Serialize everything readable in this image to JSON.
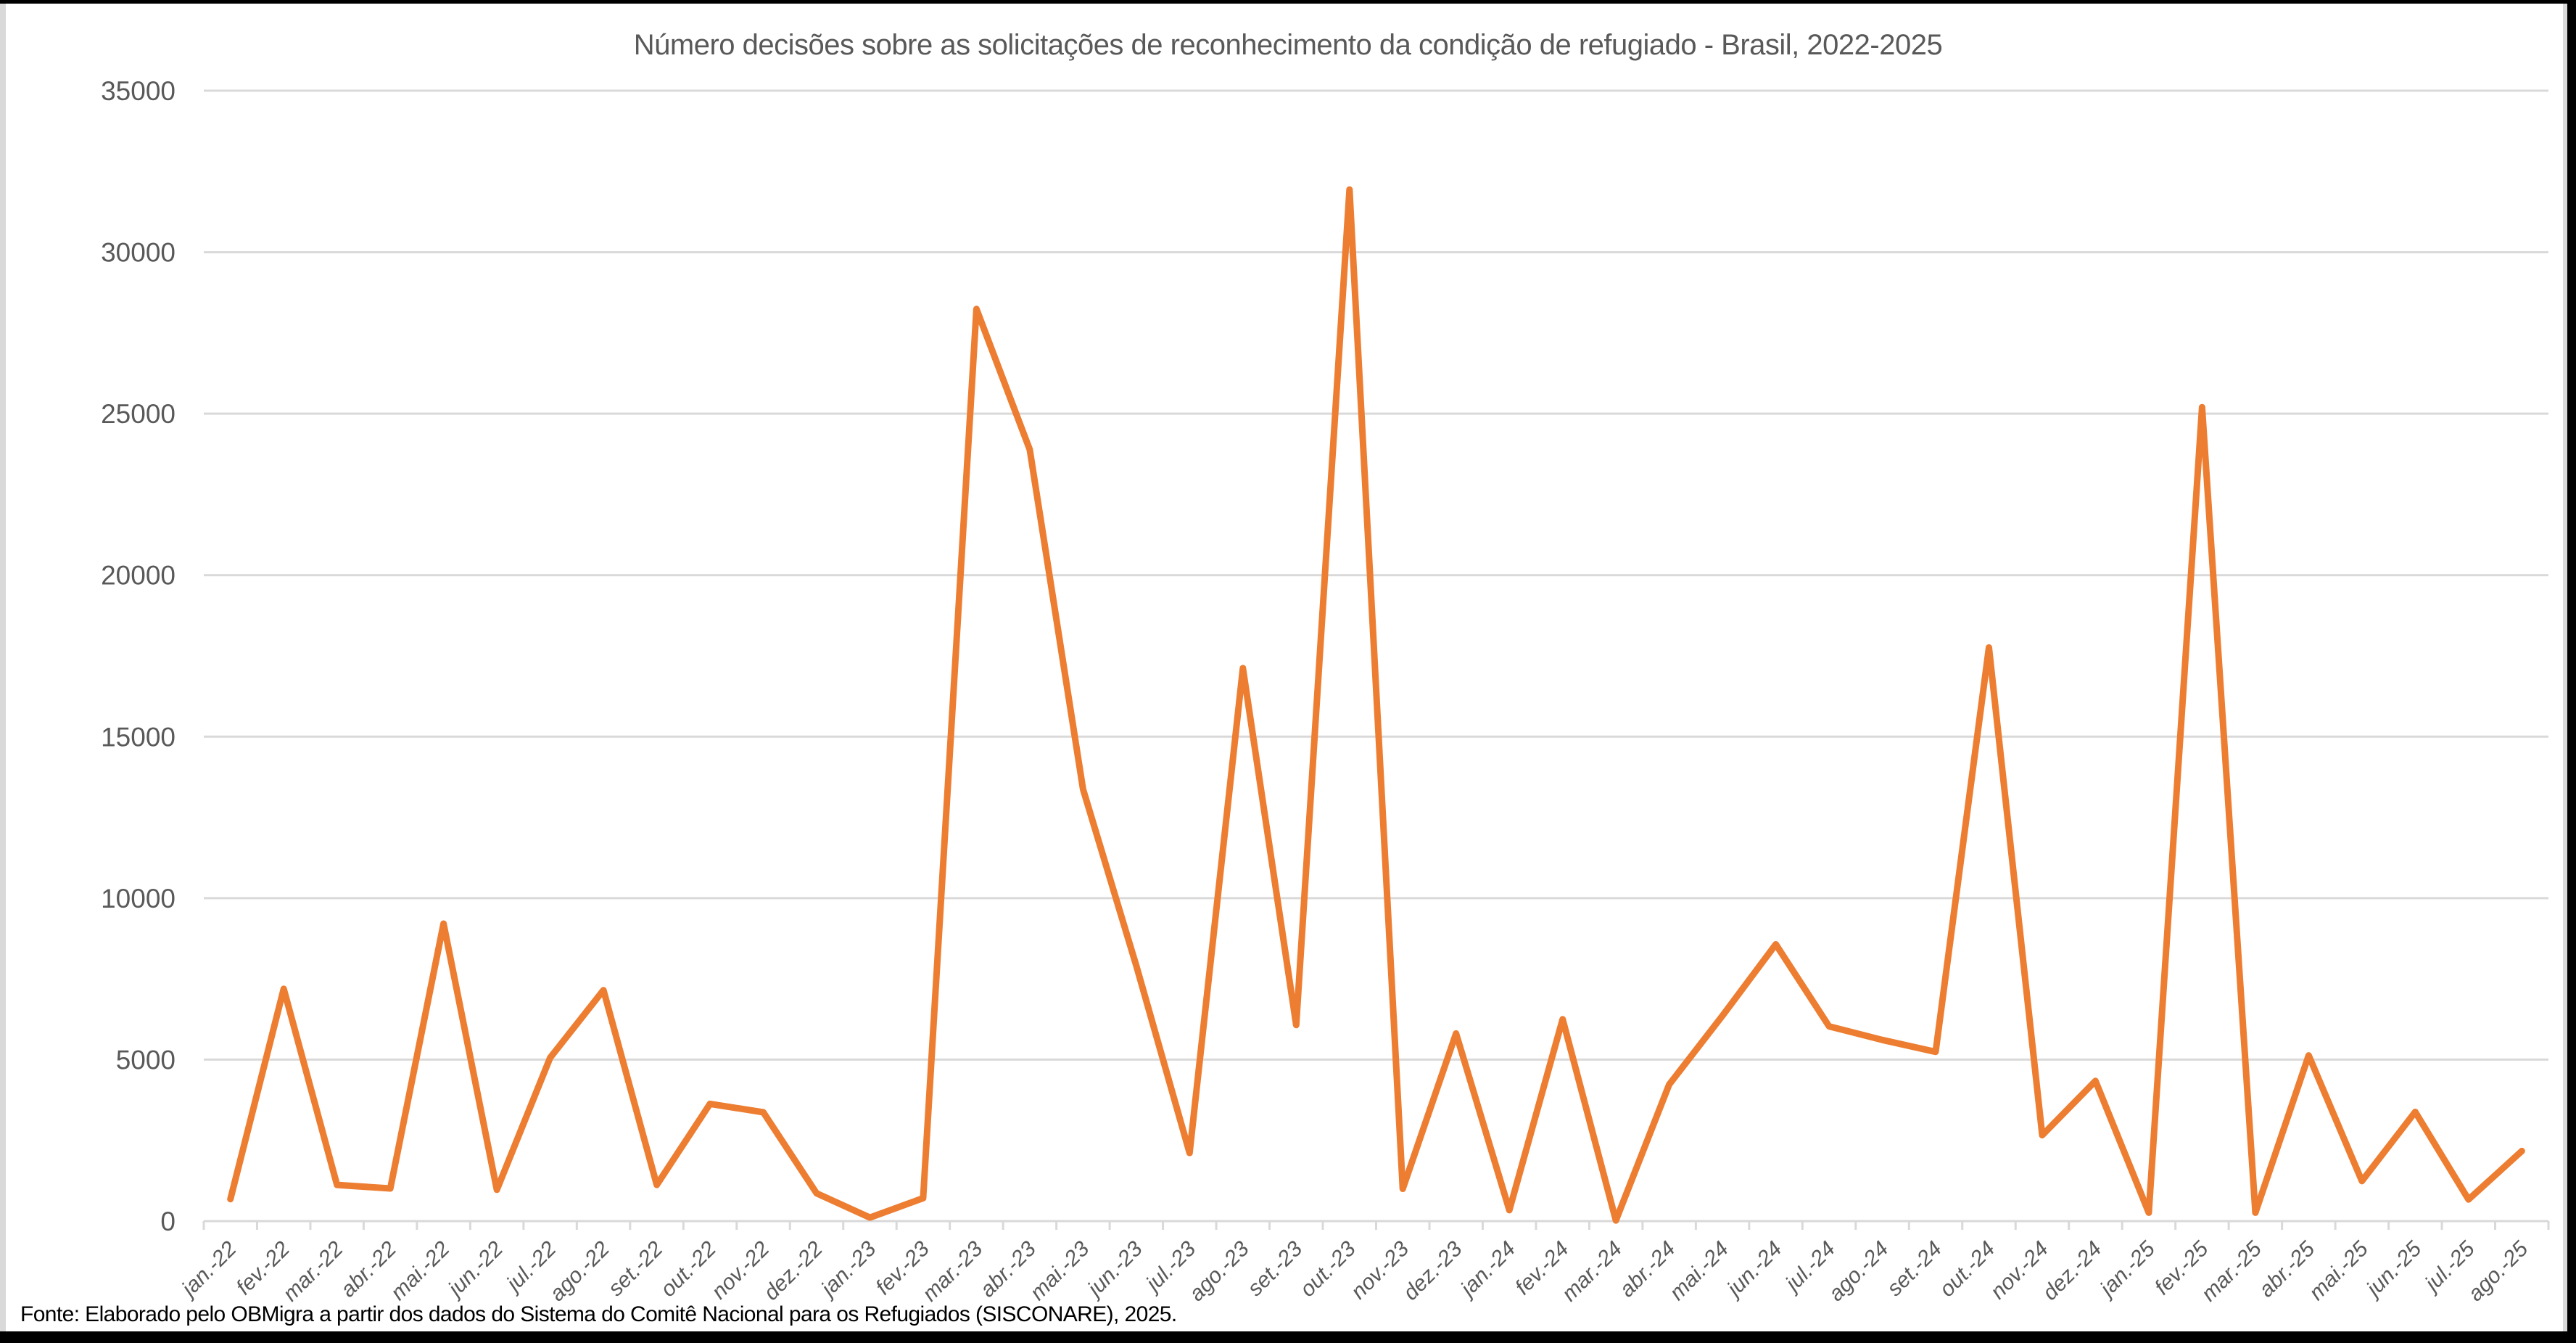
{
  "title": "Número decisões sobre as solicitações de reconhecimento da condição de refugiado - Brasil, 2022-2025",
  "footer": "Fonte: Elaborado pelo OBMigra a partir dos dados  do Sistema do Comitê Nacional para os Refugiados (SISCONARE), 2025.",
  "colors": {
    "line": "#ED7D31",
    "grid": "#D9D9D9",
    "text": "#595959"
  },
  "chart_data": {
    "type": "line",
    "title": "Número decisões sobre as solicitações de reconhecimento da condição de refugiado - Brasil, 2022-2025",
    "xlabel": "",
    "ylabel": "",
    "ylim": [
      0,
      35000
    ],
    "yticks": [
      0,
      5000,
      10000,
      15000,
      20000,
      25000,
      30000,
      35000
    ],
    "grid": true,
    "legend": null,
    "categories": [
      "jan.-22",
      "fev.-22",
      "mar.-22",
      "abr.-22",
      "mai.-22",
      "jun.-22",
      "jul.-22",
      "ago.-22",
      "set.-22",
      "out.-22",
      "nov.-22",
      "dez.-22",
      "jan.-23",
      "fev.-23",
      "mar.-23",
      "abr.-23",
      "mai.-23",
      "jun.-23",
      "jul.-23",
      "ago.-23",
      "set.-23",
      "out.-23",
      "nov.-23",
      "dez.-23",
      "jan.-24",
      "fev.-24",
      "mar.-24",
      "abr.-24",
      "mai.-24",
      "jun.-24",
      "jul.-24",
      "ago.-24",
      "set.-24",
      "out.-24",
      "nov.-24",
      "dez.-24",
      "jan.-25",
      "fev.-25",
      "mar.-25",
      "abr.-25",
      "mai.-25",
      "jun.-25",
      "jul.-25",
      "ago.-25"
    ],
    "series": [
      {
        "name": "Decisões",
        "color": "#ED7D31",
        "values": [
          680,
          7190,
          1120,
          1010,
          9210,
          970,
          5060,
          7150,
          1120,
          3630,
          3370,
          860,
          110,
          710,
          28240,
          23890,
          13370,
          7900,
          2110,
          17120,
          6070,
          31940,
          1000,
          5810,
          340,
          6250,
          20,
          4230,
          6360,
          8570,
          6030,
          5610,
          5240,
          17760,
          2660,
          4340,
          260,
          25200,
          260,
          5130,
          1240,
          3380,
          670,
          2170
        ]
      }
    ]
  }
}
